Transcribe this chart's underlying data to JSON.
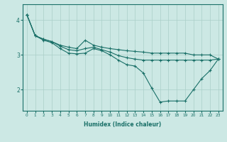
{
  "xlabel": "Humidex (Indice chaleur)",
  "bg_color": "#cce8e4",
  "grid_color": "#aacfc8",
  "line_color": "#1a7068",
  "xlim": [
    -0.5,
    23.5
  ],
  "ylim": [
    1.4,
    4.45
  ],
  "yticks": [
    2,
    3,
    4
  ],
  "xticks": [
    0,
    1,
    2,
    3,
    4,
    5,
    6,
    7,
    8,
    9,
    10,
    11,
    12,
    13,
    14,
    15,
    16,
    17,
    18,
    19,
    20,
    21,
    22,
    23
  ],
  "lines": [
    {
      "x": [
        0,
        1,
        2,
        3,
        4,
        5,
        6,
        7,
        8,
        9,
        10,
        11,
        12,
        13,
        14,
        15,
        16,
        17,
        18,
        19,
        20,
        21,
        22,
        23
      ],
      "y": [
        4.15,
        3.55,
        3.42,
        3.35,
        3.18,
        3.05,
        3.03,
        3.05,
        3.18,
        3.12,
        3.0,
        2.85,
        2.72,
        2.68,
        2.48,
        2.05,
        1.65,
        1.68,
        1.68,
        1.68,
        2.0,
        2.32,
        2.55,
        2.88
      ]
    },
    {
      "x": [
        0,
        1,
        2,
        3,
        4,
        5,
        6,
        7,
        8,
        9,
        10,
        11,
        12,
        13,
        14,
        15,
        16,
        17,
        18,
        19,
        20,
        21,
        22,
        23
      ],
      "y": [
        4.15,
        3.55,
        3.45,
        3.38,
        3.28,
        3.22,
        3.18,
        3.42,
        3.28,
        3.22,
        3.18,
        3.15,
        3.12,
        3.1,
        3.08,
        3.05,
        3.05,
        3.05,
        3.05,
        3.05,
        3.0,
        3.0,
        3.0,
        2.88
      ]
    },
    {
      "x": [
        0,
        1,
        2,
        3,
        4,
        5,
        6,
        7,
        8,
        9,
        10,
        11,
        12,
        13,
        14,
        15,
        16,
        17,
        18,
        19,
        20,
        21,
        22,
        23
      ],
      "y": [
        4.15,
        3.55,
        3.45,
        3.38,
        3.25,
        3.15,
        3.12,
        3.18,
        3.22,
        3.15,
        3.08,
        2.98,
        2.92,
        2.88,
        2.85,
        2.85,
        2.85,
        2.85,
        2.85,
        2.85,
        2.85,
        2.85,
        2.85,
        2.88
      ]
    }
  ]
}
